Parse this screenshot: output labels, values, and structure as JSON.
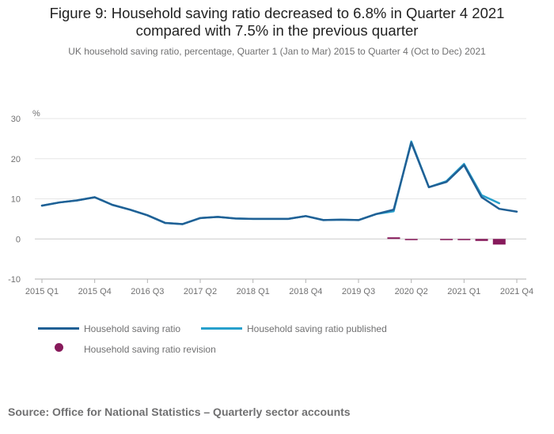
{
  "chart_data": {
    "type": "line",
    "title_line1": "Figure 9: Household saving ratio decreased to 6.8% in Quarter 4 2021",
    "title_line2": "compared with 7.5% in the previous quarter",
    "subtitle": "UK household saving ratio, percentage, Quarter 1 (Jan to Mar) 2015 to Quarter 4 (Oct to Dec) 2021",
    "ylabel": "%",
    "ylim": [
      -10,
      30
    ],
    "yticks": [
      30,
      20,
      10,
      0,
      -10
    ],
    "x": [
      "2015 Q1",
      "2015 Q2",
      "2015 Q3",
      "2015 Q4",
      "2016 Q1",
      "2016 Q2",
      "2016 Q3",
      "2016 Q4",
      "2017 Q1",
      "2017 Q2",
      "2017 Q3",
      "2017 Q4",
      "2018 Q1",
      "2018 Q2",
      "2018 Q3",
      "2018 Q4",
      "2019 Q1",
      "2019 Q2",
      "2019 Q3",
      "2019 Q4",
      "2020 Q1",
      "2020 Q2",
      "2020 Q3",
      "2020 Q4",
      "2021 Q1",
      "2021 Q2",
      "2021 Q3",
      "2021 Q4"
    ],
    "xtick_labels": [
      "2015 Q1",
      "2015 Q4",
      "2016 Q3",
      "2017 Q2",
      "2018 Q1",
      "2018 Q4",
      "2019 Q3",
      "2020 Q2",
      "2021 Q1",
      "2021 Q4"
    ],
    "series": [
      {
        "name": "Household saving ratio",
        "color": "#206095",
        "values": [
          8.3,
          9.1,
          9.6,
          10.4,
          8.5,
          7.3,
          5.9,
          4.0,
          3.7,
          5.2,
          5.5,
          5.1,
          5.0,
          5.0,
          5.0,
          5.7,
          4.7,
          4.8,
          4.7,
          6.2,
          7.3,
          24.0,
          12.9,
          14.2,
          18.4,
          10.4,
          7.5,
          6.8
        ]
      },
      {
        "name": "Household saving ratio published",
        "color": "#27A0CC",
        "values": [
          8.3,
          9.1,
          9.6,
          10.4,
          8.5,
          7.3,
          5.9,
          4.0,
          3.7,
          5.2,
          5.5,
          5.1,
          5.0,
          5.0,
          5.0,
          5.7,
          4.7,
          4.8,
          4.7,
          6.2,
          6.9,
          24.3,
          12.9,
          14.4,
          18.7,
          10.9,
          8.9,
          null
        ]
      },
      {
        "name": "Household saving ratio revision",
        "color": "#871A5B",
        "values": [
          0,
          0,
          0,
          0,
          0,
          0,
          0,
          0,
          0,
          0,
          0,
          0,
          0,
          0,
          0,
          0,
          0,
          0,
          0,
          0,
          0.4,
          -0.3,
          0,
          -0.2,
          -0.3,
          -0.5,
          -1.4,
          0
        ]
      }
    ],
    "legend": [
      "Household saving ratio",
      "Household saving ratio published",
      "Household saving ratio revision"
    ],
    "source": "Source: Office for National Statistics – Quarterly sector accounts"
  }
}
